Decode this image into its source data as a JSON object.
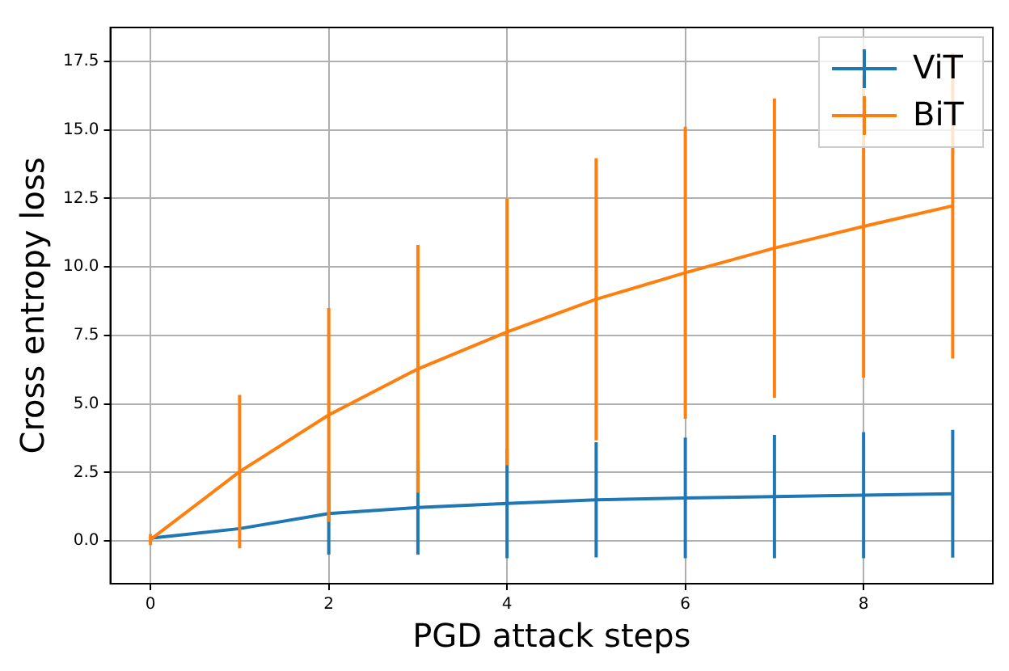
{
  "chart_data": {
    "type": "line",
    "xlabel": "PGD attack steps",
    "ylabel": "Cross entropy loss",
    "x": [
      0,
      1,
      2,
      3,
      4,
      5,
      6,
      7,
      8,
      9
    ],
    "series": [
      {
        "name": "ViT",
        "color": "#1f77b4",
        "values": [
          0.1,
          0.45,
          1.0,
          1.22,
          1.37,
          1.5,
          1.57,
          1.62,
          1.67,
          1.72
        ],
        "errors": [
          null,
          null,
          1.5,
          1.72,
          2.0,
          2.1,
          2.2,
          2.25,
          2.3,
          2.33
        ]
      },
      {
        "name": "BiT",
        "color": "#ff7f0e",
        "values": [
          0.05,
          2.53,
          4.6,
          6.28,
          7.63,
          8.82,
          9.79,
          10.69,
          11.48,
          12.23
        ],
        "errors": [
          0.2,
          2.8,
          3.9,
          4.52,
          4.87,
          5.15,
          5.33,
          5.46,
          5.52,
          5.57
        ]
      }
    ],
    "xlim": [
      -0.45,
      9.45
    ],
    "xticks": [
      0,
      2,
      4,
      6,
      8
    ],
    "ylim": [
      -1.56,
      18.74
    ],
    "yticks": [
      {
        "value": 0,
        "label": "0.0"
      },
      {
        "value": 2.5,
        "label": "2.5"
      },
      {
        "value": 5,
        "label": "5.0"
      },
      {
        "value": 7.5,
        "label": "7.5"
      },
      {
        "value": 10,
        "label": "10.0"
      },
      {
        "value": 12.5,
        "label": "12.5"
      },
      {
        "value": 15,
        "label": "15.0"
      },
      {
        "value": 17.5,
        "label": "17.5"
      }
    ],
    "grid": true,
    "legend": "top right",
    "marker": "none",
    "line_style": "solid"
  }
}
